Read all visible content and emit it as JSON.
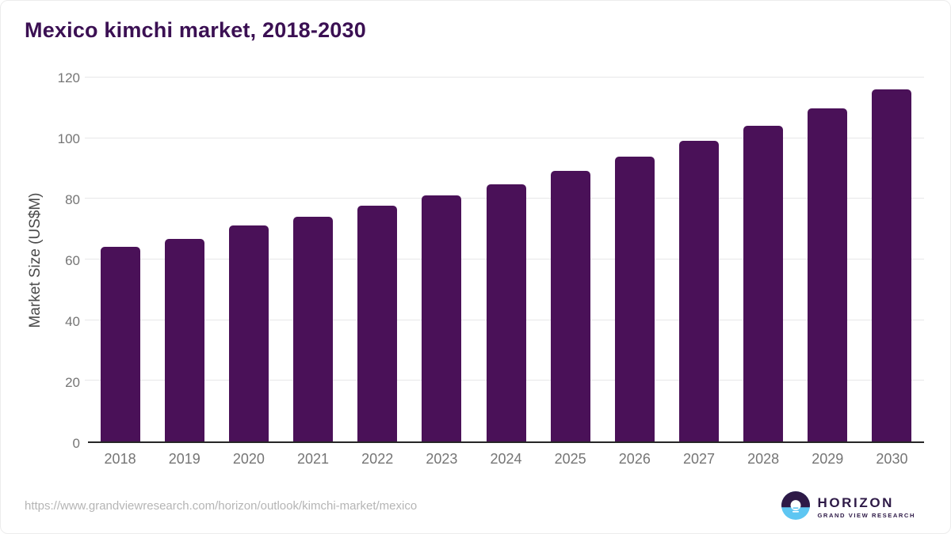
{
  "header": {
    "title": "Mexico kimchi market, 2018-2030"
  },
  "chart_data": {
    "type": "bar",
    "title": "Mexico kimchi market, 2018-2030",
    "categories": [
      "2018",
      "2019",
      "2020",
      "2021",
      "2022",
      "2023",
      "2024",
      "2025",
      "2026",
      "2027",
      "2028",
      "2029",
      "2030"
    ],
    "values": [
      64.3,
      66.9,
      71.1,
      74.2,
      77.8,
      81.2,
      84.9,
      89.3,
      93.9,
      99.1,
      104.2,
      109.8,
      116.1
    ],
    "xlabel": "",
    "ylabel": "Market Size (US$M)",
    "ylim": [
      0,
      120
    ],
    "yticks": [
      0,
      20,
      40,
      60,
      80,
      100,
      120
    ],
    "grid": "horizontal",
    "legend": "none",
    "bar_color": "#4a1158"
  },
  "footer": {
    "source_url": "https://www.grandviewresearch.com/horizon/outlook/kimchi-market/mexico",
    "logo": {
      "name": "HORIZON",
      "subtitle": "GRAND VIEW RESEARCH"
    }
  },
  "colors": {
    "title": "#3b1053",
    "bar": "#4a1158",
    "axis_line": "#262626",
    "gridline": "#e7e7e9",
    "tick_label": "#757575",
    "axis_title": "#4a4a4a",
    "url_text": "#b5b5b5",
    "logo_purple": "#2e1a47",
    "logo_blue": "#5ec6f2"
  }
}
